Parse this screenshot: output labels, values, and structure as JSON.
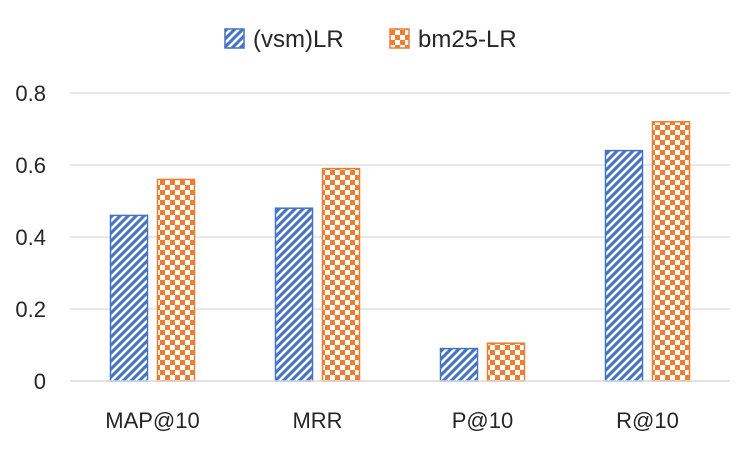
{
  "chart_data": {
    "type": "bar",
    "categories": [
      "MAP@10",
      "MRR",
      "P@10",
      "R@10"
    ],
    "series": [
      {
        "name": "(vsm)LR",
        "values": [
          0.46,
          0.48,
          0.09,
          0.64
        ],
        "color": "#4472C4",
        "pattern": "diagonal-stripes"
      },
      {
        "name": "bm25-LR",
        "values": [
          0.56,
          0.59,
          0.105,
          0.72
        ],
        "color": "#ED7D31",
        "pattern": "checkerboard"
      }
    ],
    "yticks": [
      "0",
      "0.2",
      "0.4",
      "0.6",
      "0.8"
    ],
    "ylim": [
      0,
      0.8
    ],
    "grid": true,
    "legend": "top-center"
  }
}
